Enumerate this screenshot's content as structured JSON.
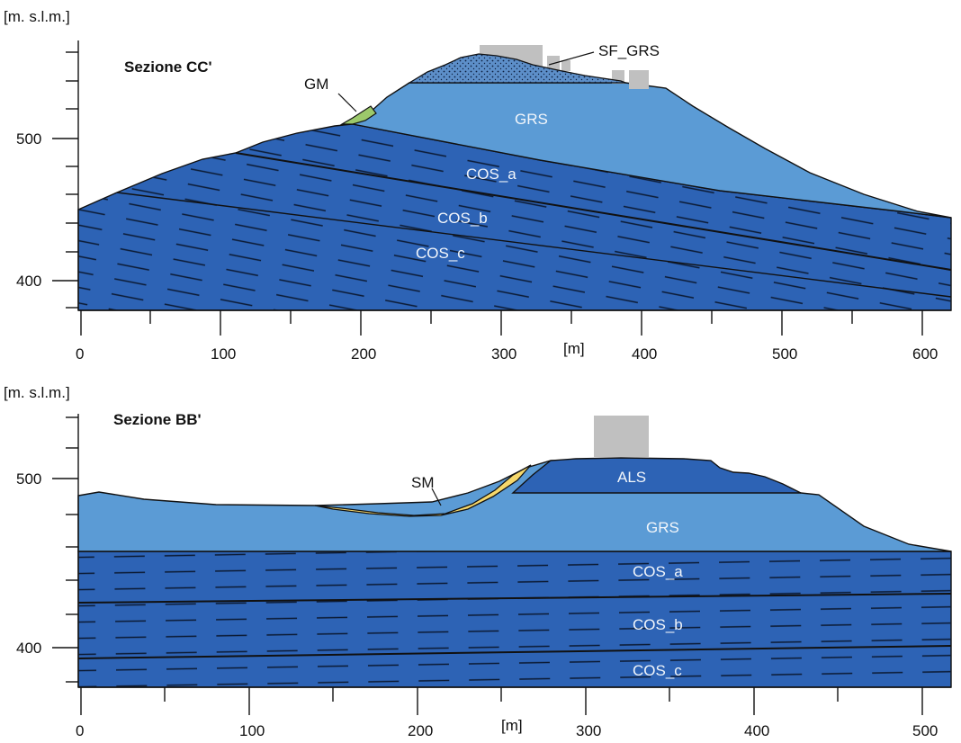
{
  "colors": {
    "cos": "#2d63b5",
    "grs": "#5b9bd5",
    "als": "#2d63b5",
    "sf_grs": "#5d8fc9",
    "gm": "#9cc96b",
    "sm": "#f6d86b",
    "building": "#c0c0c0",
    "outline": "#111111"
  },
  "sections": [
    {
      "title": "Sezione CC'",
      "y_axis_label": "[m. s.l.m.]",
      "x_unit": "[m]",
      "y_tick_labels": [
        "500",
        "400"
      ],
      "x_tick_labels": [
        "0",
        "100",
        "200",
        "300",
        "400",
        "500",
        "600"
      ],
      "layers": [
        {
          "id": "grs",
          "label": "GRS",
          "pattern": "none"
        },
        {
          "id": "cos_a",
          "label": "COS_a",
          "pattern": "dashed"
        },
        {
          "id": "cos_b",
          "label": "COS_b",
          "pattern": "dashed"
        },
        {
          "id": "cos_c",
          "label": "COS_c",
          "pattern": "dashed"
        },
        {
          "id": "gm",
          "label": "GM",
          "pattern": "none"
        },
        {
          "id": "sf_grs",
          "label": "SF_GRS",
          "pattern": "dotted"
        }
      ]
    },
    {
      "title": "Sezione BB'",
      "y_axis_label": "[m. s.l.m.]",
      "x_unit": "[m]",
      "y_tick_labels": [
        "500",
        "400"
      ],
      "x_tick_labels": [
        "0",
        "100",
        "200",
        "300",
        "400",
        "500"
      ],
      "layers": [
        {
          "id": "als",
          "label": "ALS",
          "pattern": "none"
        },
        {
          "id": "grs",
          "label": "GRS",
          "pattern": "none"
        },
        {
          "id": "sm",
          "label": "SM",
          "pattern": "none"
        },
        {
          "id": "cos_a",
          "label": "COS_a",
          "pattern": "dashed"
        },
        {
          "id": "cos_b",
          "label": "COS_b",
          "pattern": "dashed"
        },
        {
          "id": "cos_c",
          "label": "COS_c",
          "pattern": "dashed"
        }
      ]
    }
  ]
}
